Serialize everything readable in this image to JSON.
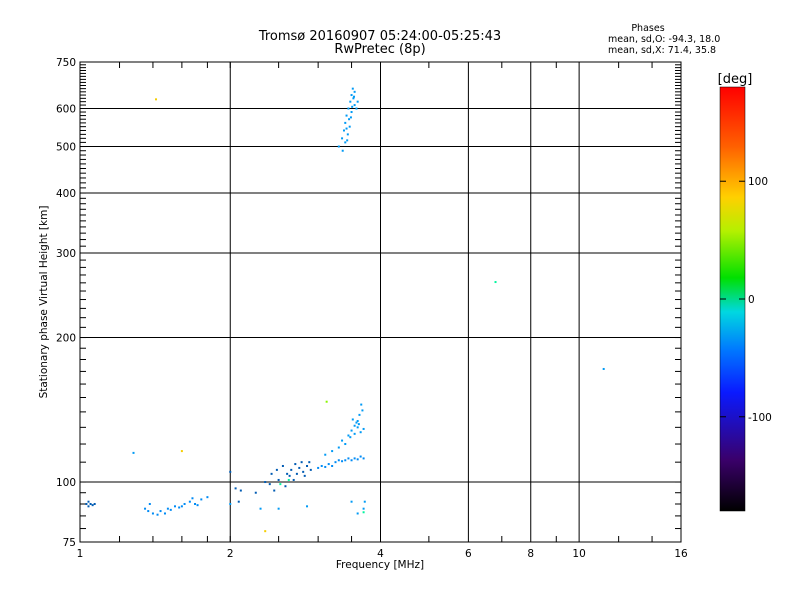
{
  "chart_data": {
    "type": "scatter",
    "title": "Tromsø 20160907 05:24:00-05:25:43",
    "subtitle": "RwPretec (8p)",
    "xlabel": "Frequency [MHz]",
    "ylabel": "Stationary phase Virtual Height [km]",
    "xscale": "log",
    "yscale": "log",
    "xlim": [
      1,
      16
    ],
    "ylim": [
      75,
      750
    ],
    "x_ticks": [
      "1",
      "2",
      "4",
      "6",
      "8",
      "10",
      "16"
    ],
    "y_ticks": [
      "75",
      "100",
      "200",
      "300",
      "400",
      "500",
      "600",
      "750"
    ],
    "grid": true,
    "phase_stats": {
      "heading": "Phases",
      "line_o": "mean, sd,O: -94.3, 18.0",
      "line_x": "mean, sd,X:  71.4, 35.8"
    },
    "colorbar": {
      "label": "[deg]",
      "range": [
        -180,
        180
      ],
      "ticks": [
        "100",
        "0",
        "-100"
      ],
      "tick_values": [
        100,
        0,
        -100
      ]
    },
    "clusters": [
      {
        "phase": -110,
        "points": [
          [
            1.03,
            90
          ],
          [
            1.04,
            89
          ],
          [
            1.05,
            90
          ],
          [
            1.06,
            89.5
          ],
          [
            1.07,
            90
          ],
          [
            1.04,
            91
          ]
        ]
      },
      {
        "phase": -105,
        "points": [
          [
            1.35,
            88
          ],
          [
            1.37,
            87
          ],
          [
            1.4,
            86
          ],
          [
            1.43,
            85.5
          ],
          [
            1.45,
            87
          ],
          [
            1.5,
            88
          ],
          [
            1.55,
            89
          ],
          [
            1.58,
            88.5
          ],
          [
            1.62,
            90
          ],
          [
            1.66,
            91
          ],
          [
            1.7,
            90
          ],
          [
            1.75,
            92
          ],
          [
            1.8,
            93
          ],
          [
            1.38,
            90
          ],
          [
            1.48,
            86
          ],
          [
            1.52,
            87.5
          ],
          [
            1.6,
            89
          ],
          [
            1.68,
            92.5
          ],
          [
            1.72,
            89.5
          ]
        ]
      },
      {
        "phase": -110,
        "points": [
          [
            2.0,
            105
          ],
          [
            2.05,
            97
          ],
          [
            2.1,
            96
          ],
          [
            2.08,
            91
          ],
          [
            2.25,
            95
          ],
          [
            2.35,
            100
          ],
          [
            2.42,
            104
          ],
          [
            2.48,
            106
          ],
          [
            2.55,
            108
          ],
          [
            2.6,
            104
          ],
          [
            2.65,
            106
          ],
          [
            2.7,
            109
          ],
          [
            2.75,
            107
          ],
          [
            2.8,
            105
          ],
          [
            2.85,
            108
          ],
          [
            2.9,
            106
          ],
          [
            2.5,
            101
          ],
          [
            2.58,
            98
          ],
          [
            2.63,
            103
          ],
          [
            2.72,
            104
          ],
          [
            2.78,
            110
          ],
          [
            2.45,
            96
          ],
          [
            2.4,
            99
          ],
          [
            2.68,
            101
          ],
          [
            2.82,
            103
          ],
          [
            2.88,
            110
          ]
        ]
      },
      {
        "phase": -105,
        "points": [
          [
            3.0,
            107
          ],
          [
            3.05,
            108
          ],
          [
            3.1,
            107.5
          ],
          [
            3.15,
            109
          ],
          [
            3.2,
            108
          ],
          [
            3.25,
            110
          ],
          [
            3.3,
            111
          ],
          [
            3.35,
            110.5
          ],
          [
            3.4,
            111
          ],
          [
            3.45,
            112
          ],
          [
            3.5,
            111
          ],
          [
            3.55,
            112
          ],
          [
            3.6,
            111.5
          ],
          [
            3.65,
            113
          ],
          [
            3.7,
            112
          ]
        ]
      },
      {
        "phase": -100,
        "points": [
          [
            3.1,
            114
          ],
          [
            3.2,
            116
          ],
          [
            3.3,
            118
          ],
          [
            3.35,
            122
          ],
          [
            3.4,
            120
          ],
          [
            3.45,
            125
          ],
          [
            3.5,
            128
          ],
          [
            3.55,
            126
          ],
          [
            3.6,
            130
          ],
          [
            3.62,
            132
          ],
          [
            3.65,
            127
          ],
          [
            3.7,
            129
          ],
          [
            3.58,
            133
          ],
          [
            3.52,
            135
          ],
          [
            3.63,
            138
          ],
          [
            3.68,
            141
          ],
          [
            3.66,
            145
          ],
          [
            3.48,
            124
          ],
          [
            3.55,
            131
          ],
          [
            3.6,
            134
          ]
        ]
      },
      {
        "phase": -100,
        "points": [
          [
            3.3,
            500
          ],
          [
            3.35,
            520
          ],
          [
            3.38,
            540
          ],
          [
            3.4,
            560
          ],
          [
            3.42,
            580
          ],
          [
            3.45,
            600
          ],
          [
            3.48,
            620
          ],
          [
            3.5,
            640
          ],
          [
            3.52,
            660
          ],
          [
            3.55,
            610
          ],
          [
            3.44,
            530
          ],
          [
            3.46,
            570
          ],
          [
            3.5,
            590
          ],
          [
            3.53,
            630
          ],
          [
            3.36,
            490
          ],
          [
            3.4,
            510
          ],
          [
            3.47,
            550
          ],
          [
            3.55,
            650
          ],
          [
            3.58,
            600
          ],
          [
            3.6,
            620
          ],
          [
            3.42,
            545
          ],
          [
            3.49,
            575
          ],
          [
            3.51,
            605
          ],
          [
            3.43,
            515
          ],
          [
            3.54,
            635
          ]
        ]
      },
      {
        "phase": -100,
        "points": [
          [
            1.28,
            115
          ],
          [
            2.0,
            90
          ],
          [
            2.5,
            88
          ],
          [
            2.85,
            89
          ],
          [
            3.5,
            91
          ],
          [
            3.7,
            88
          ],
          [
            3.72,
            91
          ],
          [
            3.6,
            86
          ],
          [
            11.2,
            172
          ],
          [
            2.3,
            88
          ]
        ]
      },
      {
        "phase": -40,
        "points": [
          [
            6.8,
            261
          ],
          [
            3.7,
            86.5
          ],
          [
            2.52,
            99
          ],
          [
            2.62,
            101
          ]
        ]
      },
      {
        "phase": 60,
        "points": [
          [
            3.12,
            147
          ]
        ]
      },
      {
        "phase": 110,
        "points": [
          [
            1.6,
            116
          ],
          [
            2.35,
            79
          ],
          [
            1.42,
            627
          ]
        ]
      }
    ]
  }
}
